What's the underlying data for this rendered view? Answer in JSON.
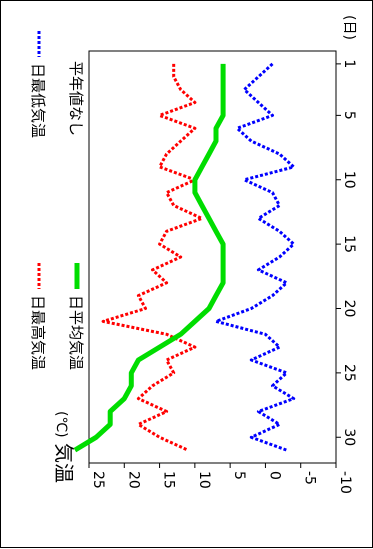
{
  "chart_data": {
    "type": "line",
    "orientation": "rotated-90-clockwise",
    "title": "気温",
    "unit_label": "(℃)",
    "xlabel": "(日)",
    "x_ticks": [
      1,
      5,
      10,
      15,
      20,
      25,
      30
    ],
    "y_ticks": [
      25,
      20,
      15,
      10,
      5,
      0,
      -5,
      -10
    ],
    "xlim": [
      0,
      32
    ],
    "ylim": [
      -10,
      25
    ],
    "grid": false,
    "legend_position": "top",
    "legend": [
      {
        "label": "日最高気温",
        "color": "#ff0000",
        "style": "dotted"
      },
      {
        "label": "日最低気温",
        "color": "#0000ff",
        "style": "dotted"
      },
      {
        "label": "日平均気温",
        "color": "#00dd00",
        "style": "solid-thick"
      },
      {
        "label": "平年値なし"
      }
    ],
    "x": [
      1,
      2,
      3,
      4,
      5,
      6,
      7,
      8,
      9,
      10,
      11,
      12,
      13,
      14,
      15,
      16,
      17,
      18,
      19,
      20,
      21,
      22,
      23,
      24,
      25,
      26,
      27,
      28,
      29,
      30,
      31
    ],
    "series": [
      {
        "name": "日最高気温",
        "color": "#ff0000",
        "values": [
          13,
          13,
          12,
          10,
          15,
          10,
          12,
          14,
          15,
          10,
          14,
          13,
          9,
          14,
          15,
          12,
          16,
          14,
          18,
          17,
          23,
          14,
          10,
          14,
          13,
          16,
          18,
          14,
          18,
          15,
          11
        ]
      },
      {
        "name": "日最低気温",
        "color": "#0000ff",
        "values": [
          -1,
          1,
          3,
          1,
          -1,
          4,
          2,
          -2,
          -4,
          3,
          -1,
          -2,
          1,
          -2,
          -4,
          -2,
          1,
          -3,
          -1,
          2,
          7,
          0,
          -2,
          2,
          -3,
          -1,
          -4,
          1,
          -2,
          2,
          -3
        ]
      },
      {
        "name": "日平均気温",
        "color": "#00dd00",
        "values": [
          6,
          6,
          6,
          6,
          6,
          7,
          7,
          8,
          9,
          10,
          10,
          9,
          8,
          7,
          6,
          6,
          6,
          6,
          7,
          8,
          10,
          12,
          15,
          18,
          19,
          19,
          20,
          22,
          22,
          24,
          27
        ]
      }
    ]
  }
}
